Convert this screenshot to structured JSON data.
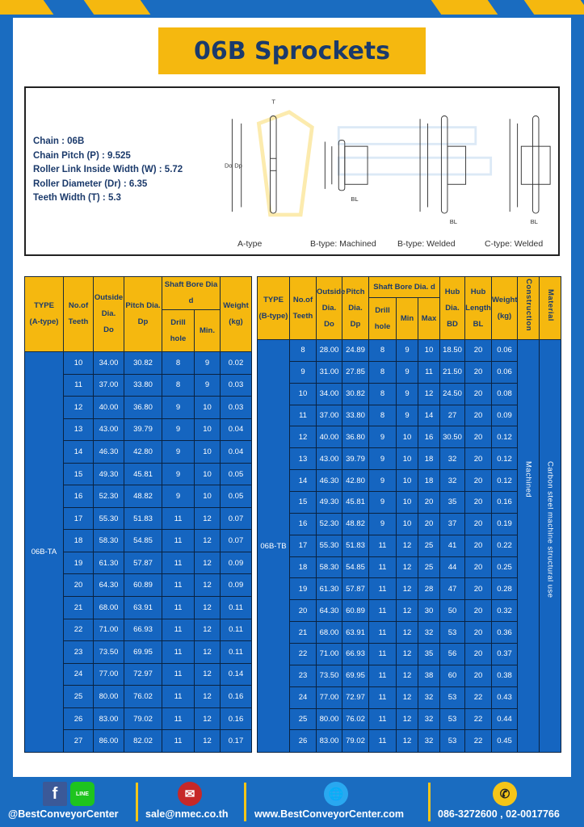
{
  "title": "06B Sprockets",
  "specs": [
    "Chain : 06B",
    "Chain Pitch (P) : 9.525",
    "Roller Link Inside Width (W) : 5.72",
    "Roller Diameter (Dr) : 6.35",
    "Teeth Width (T) : 5.3"
  ],
  "diagram_labels": [
    "A-type",
    "B-type: Machined",
    "B-type: Welded",
    "C-type: Welded"
  ],
  "diagram_dims": {
    "t": "T",
    "do": "Do",
    "dp": "Dp",
    "d": "d",
    "bd": "BD",
    "bl": "BL"
  },
  "table_a": {
    "headers": {
      "type": "TYPE",
      "type_sub": "(A-type)",
      "teeth": "No.of",
      "teeth_sub": "Teeth",
      "do": "Outside",
      "do_sub": "Dia.",
      "do_sub2": "Do",
      "dp": "Pitch Dia.",
      "dp_sub": "Dp",
      "bore": "Shaft Bore Dia d",
      "drill": "Drill hole",
      "min": "Min.",
      "weight": "Weight",
      "weight_sub": "(kg)"
    },
    "type_value": "06B-TA",
    "rows": [
      [
        "10",
        "34.00",
        "30.82",
        "8",
        "9",
        "0.02"
      ],
      [
        "11",
        "37.00",
        "33.80",
        "8",
        "9",
        "0.03"
      ],
      [
        "12",
        "40.00",
        "36.80",
        "9",
        "10",
        "0.03"
      ],
      [
        "13",
        "43.00",
        "39.79",
        "9",
        "10",
        "0.04"
      ],
      [
        "14",
        "46.30",
        "42.80",
        "9",
        "10",
        "0.04"
      ],
      [
        "15",
        "49.30",
        "45.81",
        "9",
        "10",
        "0.05"
      ],
      [
        "16",
        "52.30",
        "48.82",
        "9",
        "10",
        "0.05"
      ],
      [
        "17",
        "55.30",
        "51.83",
        "11",
        "12",
        "0.07"
      ],
      [
        "18",
        "58.30",
        "54.85",
        "11",
        "12",
        "0.07"
      ],
      [
        "19",
        "61.30",
        "57.87",
        "11",
        "12",
        "0.09"
      ],
      [
        "20",
        "64.30",
        "60.89",
        "11",
        "12",
        "0.09"
      ],
      [
        "21",
        "68.00",
        "63.91",
        "11",
        "12",
        "0.11"
      ],
      [
        "22",
        "71.00",
        "66.93",
        "11",
        "12",
        "0.11"
      ],
      [
        "23",
        "73.50",
        "69.95",
        "11",
        "12",
        "0.11"
      ],
      [
        "24",
        "77.00",
        "72.97",
        "11",
        "12",
        "0.14"
      ],
      [
        "25",
        "80.00",
        "76.02",
        "11",
        "12",
        "0.16"
      ],
      [
        "26",
        "83.00",
        "79.02",
        "11",
        "12",
        "0.16"
      ],
      [
        "27",
        "86.00",
        "82.02",
        "11",
        "12",
        "0.17"
      ]
    ]
  },
  "table_b": {
    "headers": {
      "type": "TYPE",
      "type_sub": "(B-type)",
      "teeth": "No.of",
      "teeth_sub": "Teeth",
      "do": "Outside",
      "do_sub": "Dia.",
      "do_sub2": "Do",
      "dp": "Pitch",
      "dp_sub": "Dia.",
      "dp_sub2": "Dp",
      "bore": "Shaft Bore Dia. d",
      "drill": "Drill hole",
      "min": "Min",
      "max": "Max",
      "bd": "Hub",
      "bd_sub": "Dia.",
      "bd_sub2": "BD",
      "bl": "Hub",
      "bl_sub": "Length",
      "bl_sub2": "BL",
      "weight": "Weight",
      "weight_sub": "(kg)",
      "construction": "Construction",
      "material": "Material"
    },
    "type_value": "06B-TB",
    "construction_value": "Machined",
    "material_value": "Carbon steel machine structural use",
    "rows": [
      [
        "8",
        "28.00",
        "24.89",
        "8",
        "9",
        "10",
        "18.50",
        "20",
        "0.06"
      ],
      [
        "9",
        "31.00",
        "27.85",
        "8",
        "9",
        "11",
        "21.50",
        "20",
        "0.06"
      ],
      [
        "10",
        "34.00",
        "30.82",
        "8",
        "9",
        "12",
        "24.50",
        "20",
        "0.08"
      ],
      [
        "11",
        "37.00",
        "33.80",
        "8",
        "9",
        "14",
        "27",
        "20",
        "0.09"
      ],
      [
        "12",
        "40.00",
        "36.80",
        "9",
        "10",
        "16",
        "30.50",
        "20",
        "0.12"
      ],
      [
        "13",
        "43.00",
        "39.79",
        "9",
        "10",
        "18",
        "32",
        "20",
        "0.12"
      ],
      [
        "14",
        "46.30",
        "42.80",
        "9",
        "10",
        "18",
        "32",
        "20",
        "0.12"
      ],
      [
        "15",
        "49.30",
        "45.81",
        "9",
        "10",
        "20",
        "35",
        "20",
        "0.16"
      ],
      [
        "16",
        "52.30",
        "48.82",
        "9",
        "10",
        "20",
        "37",
        "20",
        "0.19"
      ],
      [
        "17",
        "55.30",
        "51.83",
        "11",
        "12",
        "25",
        "41",
        "20",
        "0.22"
      ],
      [
        "18",
        "58.30",
        "54.85",
        "11",
        "12",
        "25",
        "44",
        "20",
        "0.25"
      ],
      [
        "19",
        "61.30",
        "57.87",
        "11",
        "12",
        "28",
        "47",
        "20",
        "0.28"
      ],
      [
        "20",
        "64.30",
        "60.89",
        "11",
        "12",
        "30",
        "50",
        "20",
        "0.32"
      ],
      [
        "21",
        "68.00",
        "63.91",
        "11",
        "12",
        "32",
        "53",
        "20",
        "0.36"
      ],
      [
        "22",
        "71.00",
        "66.93",
        "11",
        "12",
        "35",
        "56",
        "20",
        "0.37"
      ],
      [
        "23",
        "73.50",
        "69.95",
        "11",
        "12",
        "38",
        "60",
        "20",
        "0.38"
      ],
      [
        "24",
        "77.00",
        "72.97",
        "11",
        "12",
        "32",
        "53",
        "22",
        "0.43"
      ],
      [
        "25",
        "80.00",
        "76.02",
        "11",
        "12",
        "32",
        "53",
        "22",
        "0.44"
      ],
      [
        "26",
        "83.00",
        "79.02",
        "11",
        "12",
        "32",
        "53",
        "22",
        "0.45"
      ]
    ]
  },
  "footer": {
    "social": "@BestConveyorCenter",
    "line_icon": "LINE",
    "email": "sale@nmec.co.th",
    "website": "www.BestConveyorCenter.com",
    "phone": "086-3272600 , 02-0017766"
  },
  "colors": {
    "blue": "#1565c0",
    "yellow": "#f5b80f",
    "navy": "#1b3a6b"
  }
}
